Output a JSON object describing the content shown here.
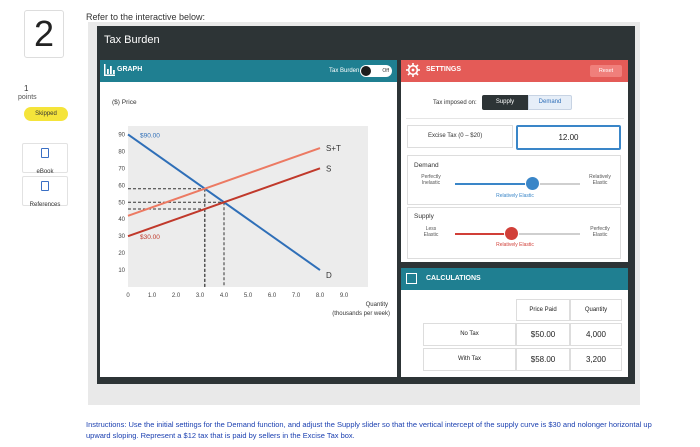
{
  "question": {
    "number": "2",
    "points_value": "1",
    "points_label": "points",
    "status_badge": "Skipped",
    "tools": [
      {
        "label": "eBook",
        "icon": "book-icon"
      },
      {
        "label": "References",
        "icon": "document-icon"
      }
    ],
    "prompt": "Refer to the interactive below:"
  },
  "widget": {
    "title": "Tax Burden",
    "graph_panel": {
      "title": "GRAPH",
      "toggle_label": "Tax Burden",
      "toggle_state": "Off"
    },
    "settings_panel": {
      "title": "SETTINGS",
      "reset_label": "Reset",
      "tax_imposed_label": "Tax imposed on:",
      "tax_imposed_options": [
        "Supply",
        "Demand"
      ],
      "tax_imposed_selected": "Supply",
      "excise_label": "Excise Tax (0 – $20)",
      "excise_value": "12.00",
      "demand_slider": {
        "title": "Demand",
        "left_label_1": "Perfectly",
        "left_label_2": "Inelastic",
        "right_label_1": "Relatively",
        "right_label_2": "Elastic",
        "mid_label": "Relatively Elastic",
        "position": 0.62,
        "color": "#3a86c8"
      },
      "supply_slider": {
        "title": "Supply",
        "left_label_1": "Less",
        "left_label_2": "Elastic",
        "right_label_1": "Perfectly",
        "right_label_2": "Elastic",
        "mid_label": "Relatively Elastic",
        "position": 0.45,
        "color": "#d13f38"
      }
    },
    "calculations_panel": {
      "title": "CALCULATIONS",
      "columns": [
        "Price Paid",
        "Quantity"
      ],
      "rows": [
        {
          "label": "No Tax",
          "price_paid": "$50.00",
          "quantity": "4,000"
        },
        {
          "label": "With Tax",
          "price_paid": "$58.00",
          "quantity": "3,200"
        }
      ]
    }
  },
  "chart_data": {
    "type": "line",
    "ylabel": "($) Price",
    "xlabel_1": "Quantity",
    "xlabel_2": "(thousands per week)",
    "x_ticks": [
      "0",
      "1.0",
      "2.0",
      "3.0",
      "4.0",
      "5.0",
      "6.0",
      "7.0",
      "8.0",
      "9.0"
    ],
    "y_ticks": [
      "10",
      "20",
      "30",
      "40",
      "50",
      "60",
      "70",
      "80",
      "90"
    ],
    "xlim": [
      0,
      10
    ],
    "ylim": [
      0,
      95
    ],
    "series": [
      {
        "name": "D",
        "color": "#2f6fb8",
        "x": [
          0,
          8.0
        ],
        "y": [
          90,
          10
        ]
      },
      {
        "name": "S",
        "color": "#c0392b",
        "x": [
          0,
          8.0
        ],
        "y": [
          30,
          70
        ]
      },
      {
        "name": "S+T",
        "color": "#ec7a63",
        "x": [
          0,
          8.0
        ],
        "y": [
          42,
          82
        ]
      }
    ],
    "annotations": [
      {
        "text": "$90.00",
        "x": 0.5,
        "y": 90
      },
      {
        "text": "$30.00",
        "x": 0.5,
        "y": 30
      }
    ],
    "guides": [
      {
        "price": 58,
        "quantity": 3.2
      },
      {
        "price": 50,
        "quantity": 4.0
      },
      {
        "price": 46,
        "quantity": 3.2
      }
    ]
  },
  "instructions": "Instructions: Use the initial settings for the Demand function, and adjust the Supply slider so that the vertical intercept of the supply curve is $30 and nolonger horizontal up upward sloping.  Represent a $12 tax that is paid by sellers in the Excise Tax box."
}
